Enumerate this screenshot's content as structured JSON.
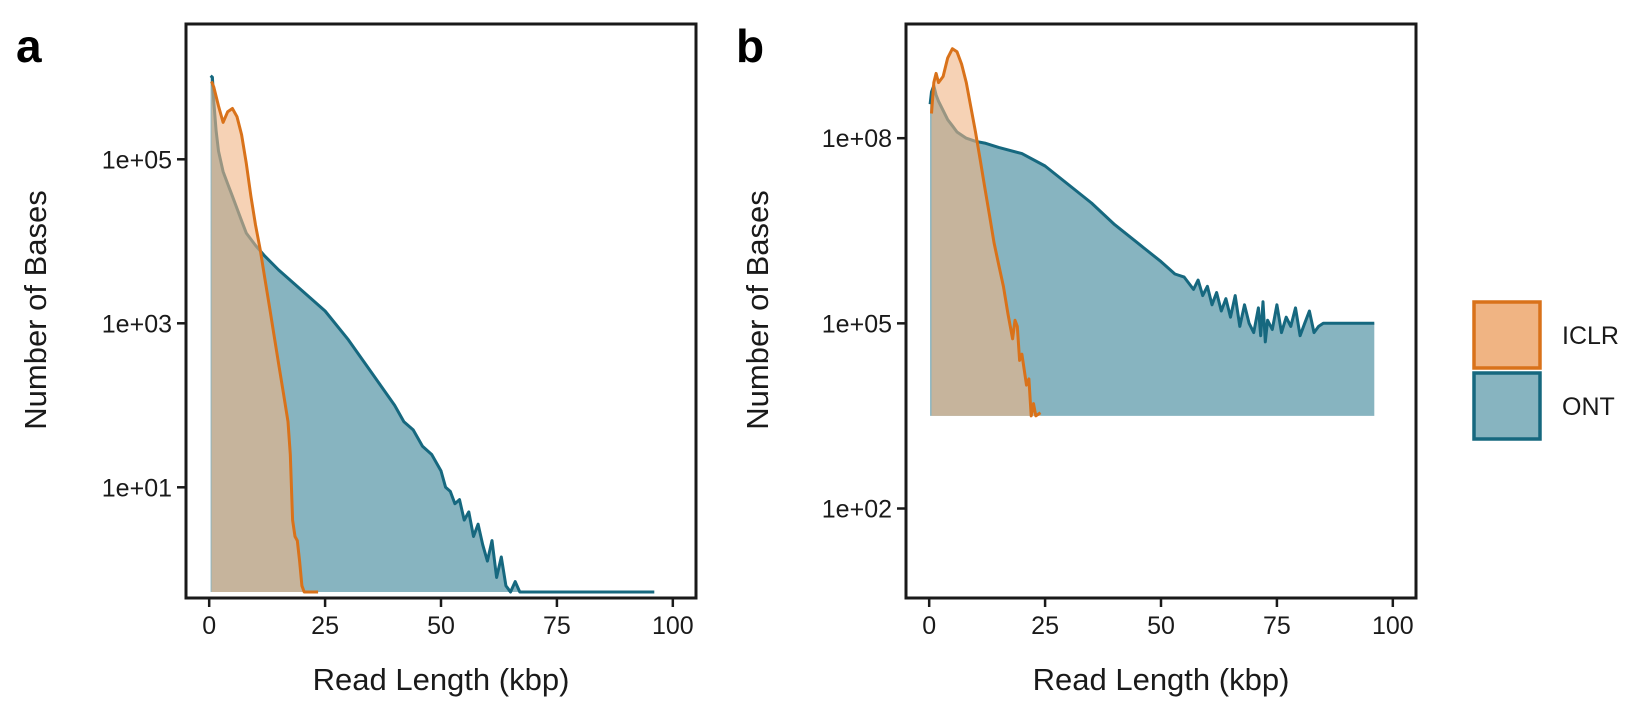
{
  "colors": {
    "ICLR_line": "#D9721A",
    "ICLR_fill": "#F0B483",
    "ONT_line": "#16687F",
    "ONT_fill": "#87B4C0"
  },
  "legend": {
    "items": [
      "ICLR",
      "ONT"
    ]
  },
  "chart_data": [
    {
      "panel": "a",
      "type": "area",
      "title": "",
      "xlabel": "Read Length (kbp)",
      "ylabel": "Number of Bases",
      "scale_y": "log10",
      "xlim": [
        -5,
        105
      ],
      "ylim_log10": [
        -0.35,
        6.65
      ],
      "x_ticks": [
        0,
        25,
        50,
        75,
        100
      ],
      "x_tick_labels": [
        "0",
        "25",
        "50",
        "75",
        "100"
      ],
      "y_ticks_log10": [
        1,
        3,
        5
      ],
      "y_tick_labels": [
        "1e+01",
        "1e+03",
        "1e+05"
      ],
      "legend_position": "right",
      "series": [
        {
          "name": "ICLR",
          "x": [
            0.5,
            1,
            2,
            3,
            4,
            5,
            6,
            7,
            8,
            9,
            10,
            11,
            12,
            13,
            14,
            15,
            16,
            17,
            17.5,
            18,
            18.5,
            19,
            19.5,
            20,
            20.5,
            21,
            21.5,
            22,
            23.5
          ],
          "y_log10": [
            5.95,
            5.88,
            5.65,
            5.45,
            5.58,
            5.62,
            5.52,
            5.3,
            4.95,
            4.55,
            4.2,
            3.9,
            3.55,
            3.2,
            2.85,
            2.5,
            2.15,
            1.8,
            1.4,
            0.6,
            0.4,
            0.35,
            0.1,
            -0.2,
            -0.95,
            -0.9,
            -0.55,
            -1.0,
            -1.0
          ]
        },
        {
          "name": "ONT",
          "x": [
            0.3,
            0.7,
            1,
            1.5,
            2,
            3,
            4,
            5,
            6,
            7,
            8,
            10,
            12,
            15,
            20,
            25,
            30,
            35,
            40,
            42,
            44,
            46,
            48,
            50,
            51,
            52,
            53,
            54,
            55,
            56,
            57,
            58,
            59,
            60,
            61,
            62,
            63,
            64,
            65,
            66,
            67,
            68,
            69,
            70,
            70.5,
            71,
            71.5,
            72,
            72.5,
            73,
            74,
            75,
            76,
            77,
            78,
            79,
            80,
            81,
            82,
            83,
            84,
            85,
            86,
            90,
            96
          ],
          "y_log10": [
            6.02,
            6.0,
            5.7,
            5.35,
            5.1,
            4.85,
            4.7,
            4.55,
            4.4,
            4.25,
            4.1,
            3.95,
            3.82,
            3.65,
            3.4,
            3.15,
            2.8,
            2.4,
            2.0,
            1.8,
            1.7,
            1.5,
            1.4,
            1.2,
            1.0,
            0.95,
            0.8,
            0.85,
            0.6,
            0.7,
            0.4,
            0.55,
            0.3,
            0.1,
            0.35,
            -0.1,
            0.15,
            -0.2,
            -0.4,
            -0.15,
            -0.6,
            -0.3,
            -0.5,
            -1.0,
            -0.45,
            -1.0,
            -0.7,
            -0.35,
            -1.0,
            -0.55,
            -1.0,
            -0.7,
            -0.8,
            -1.0,
            -0.6,
            -0.9,
            -1.0,
            -0.8,
            -0.95,
            -0.7,
            -1.0,
            -0.75,
            -1.0,
            -1.0,
            -1.0
          ]
        }
      ]
    },
    {
      "panel": "b",
      "type": "area",
      "title": "",
      "xlabel": "Read Length (kbp)",
      "ylabel": "Number of Bases",
      "scale_y": "log10",
      "xlim": [
        -5,
        105
      ],
      "ylim_log10": [
        0.55,
        9.85
      ],
      "x_ticks": [
        0,
        25,
        50,
        75,
        100
      ],
      "x_tick_labels": [
        "0",
        "25",
        "50",
        "75",
        "100"
      ],
      "y_ticks_log10": [
        2,
        5,
        8
      ],
      "y_tick_labels": [
        "1e+02",
        "1e+05",
        "1e+08"
      ],
      "legend_position": "right",
      "series": [
        {
          "name": "ICLR",
          "x": [
            0.5,
            1,
            1.5,
            2,
            3,
            4,
            5,
            6,
            7,
            8,
            9,
            10,
            11,
            12,
            13,
            14,
            15,
            16,
            17,
            18,
            18.5,
            19,
            19.5,
            20,
            20.5,
            21,
            21.5,
            22,
            22.5,
            23,
            24
          ],
          "y_log10": [
            8.4,
            8.9,
            9.05,
            8.9,
            9.0,
            9.3,
            9.45,
            9.4,
            9.2,
            8.9,
            8.5,
            8.1,
            7.65,
            7.2,
            6.75,
            6.3,
            5.95,
            5.6,
            5.15,
            4.75,
            5.05,
            4.95,
            4.4,
            4.5,
            4.25,
            4.0,
            4.1,
            3.5,
            3.7,
            3.5,
            3.55
          ]
        },
        {
          "name": "ONT",
          "x": [
            0.2,
            0.5,
            1,
            1.5,
            2,
            3,
            4,
            5,
            6,
            7,
            8,
            10,
            12,
            15,
            20,
            25,
            30,
            35,
            40,
            45,
            50,
            53,
            55,
            57,
            58,
            59,
            60,
            61,
            62,
            63,
            64,
            65,
            66,
            67,
            68,
            69,
            70,
            71,
            71.5,
            72,
            72.5,
            73,
            74,
            75,
            76,
            77,
            78,
            79,
            80,
            81,
            82,
            83,
            84,
            85,
            90,
            96
          ],
          "y_log10": [
            8.55,
            8.75,
            8.85,
            8.7,
            8.6,
            8.45,
            8.3,
            8.2,
            8.1,
            8.05,
            8.0,
            7.95,
            7.92,
            7.85,
            7.75,
            7.55,
            7.25,
            6.95,
            6.6,
            6.3,
            6.0,
            5.8,
            5.75,
            5.55,
            5.7,
            5.45,
            5.6,
            5.3,
            5.5,
            5.2,
            5.4,
            5.1,
            5.45,
            4.95,
            5.3,
            5.0,
            4.85,
            5.25,
            4.8,
            5.35,
            4.7,
            5.05,
            4.9,
            5.3,
            4.85,
            5.1,
            4.95,
            5.25,
            4.8,
            5.0,
            5.2,
            4.85,
            4.95,
            5.0,
            5.0,
            5.0
          ]
        }
      ]
    }
  ]
}
